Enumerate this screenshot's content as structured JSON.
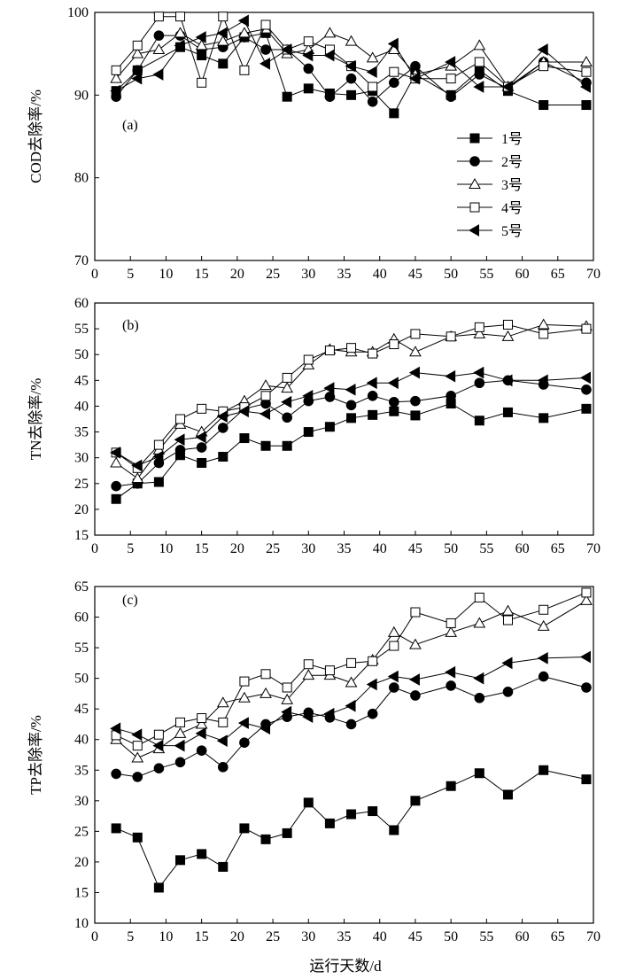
{
  "figure": {
    "xlabel": "运行天数/d"
  },
  "chart_data": [
    {
      "type": "line",
      "panel_label": "(a)",
      "ylabel": "COD去除率/%",
      "xlim": [
        0,
        70
      ],
      "ylim": [
        70,
        100
      ],
      "xticks": [
        0,
        5,
        10,
        15,
        20,
        25,
        30,
        35,
        40,
        45,
        50,
        55,
        60,
        65,
        70
      ],
      "yticks": [
        70,
        80,
        90,
        100
      ],
      "legend": {
        "position": "center-right"
      },
      "series": [
        {
          "name": "1号",
          "marker": "square-filled",
          "x": [
            3,
            6,
            12,
            15,
            18,
            21,
            24,
            27,
            30,
            33,
            36,
            39,
            42,
            45,
            50,
            54,
            58,
            63,
            69
          ],
          "y": [
            90.5,
            93,
            95.8,
            94.8,
            93.8,
            97.0,
            97.5,
            89.8,
            90.8,
            90.2,
            90.0,
            90.5,
            87.8,
            92.5,
            90.0,
            93.0,
            90.5,
            88.8,
            88.8
          ]
        },
        {
          "name": "2号",
          "marker": "circle-filled",
          "x": [
            3,
            6,
            9,
            12,
            15,
            18,
            21,
            24,
            27,
            30,
            33,
            36,
            39,
            42,
            45,
            50,
            54,
            58,
            63,
            69
          ],
          "y": [
            89.8,
            93.0,
            97.2,
            97.2,
            95.5,
            95.8,
            97.0,
            95.5,
            95.5,
            93.2,
            89.8,
            92.0,
            89.2,
            91.5,
            93.5,
            89.8,
            92.5,
            90.8,
            94.0,
            91.5
          ]
        },
        {
          "name": "3号",
          "marker": "triangle-open",
          "x": [
            3,
            6,
            9,
            12,
            15,
            18,
            21,
            24,
            27,
            30,
            33,
            36,
            39,
            42,
            45,
            50,
            54,
            58,
            63,
            69
          ],
          "y": [
            92.0,
            95.0,
            95.5,
            97.5,
            96.0,
            96.5,
            97.5,
            98.0,
            95.0,
            95.5,
            97.5,
            96.5,
            94.5,
            95.5,
            92.5,
            93.5,
            96.0,
            91.0,
            94.0,
            94.0
          ]
        },
        {
          "name": "4号",
          "marker": "square-open",
          "x": [
            3,
            6,
            9,
            12,
            15,
            18,
            21,
            24,
            27,
            30,
            33,
            36,
            39,
            42,
            45,
            50,
            54,
            58,
            63,
            69
          ],
          "y": [
            93.0,
            96.0,
            99.5,
            99.5,
            91.5,
            99.5,
            93.0,
            98.5,
            95.5,
            96.5,
            95.5,
            93.5,
            91.0,
            92.8,
            92.0,
            92.0,
            94.0,
            91.0,
            93.5,
            92.8
          ]
        },
        {
          "name": "5号",
          "marker": "triangle-left-filled",
          "x": [
            3,
            6,
            9,
            12,
            15,
            18,
            21,
            24,
            27,
            30,
            33,
            36,
            39,
            42,
            45,
            50,
            54,
            58,
            63,
            69
          ],
          "y": [
            90.5,
            92.0,
            92.5,
            96.0,
            97.0,
            97.5,
            99.0,
            93.8,
            95.5,
            94.8,
            94.8,
            93.5,
            92.8,
            96.2,
            92.0,
            94.0,
            91.0,
            91.0,
            95.5,
            91.0
          ]
        }
      ]
    },
    {
      "type": "line",
      "panel_label": "(b)",
      "ylabel": "TN去除率/%",
      "xlim": [
        0,
        70
      ],
      "ylim": [
        15,
        60
      ],
      "xticks": [
        0,
        5,
        10,
        15,
        20,
        25,
        30,
        35,
        40,
        45,
        50,
        55,
        60,
        65,
        70
      ],
      "yticks": [
        15,
        20,
        25,
        30,
        35,
        40,
        45,
        50,
        55,
        60
      ],
      "series": [
        {
          "name": "1号",
          "marker": "square-filled",
          "x": [
            3,
            6,
            9,
            12,
            15,
            18,
            21,
            24,
            27,
            30,
            33,
            36,
            39,
            42,
            45,
            50,
            54,
            58,
            63,
            69
          ],
          "y": [
            22.0,
            25.0,
            25.3,
            30.5,
            29.0,
            30.2,
            33.8,
            32.3,
            32.3,
            35.0,
            36.0,
            37.7,
            38.3,
            39.0,
            38.2,
            40.5,
            37.2,
            38.8,
            37.7,
            39.5
          ]
        },
        {
          "name": "2号",
          "marker": "circle-filled",
          "x": [
            3,
            6,
            9,
            12,
            15,
            18,
            21,
            24,
            27,
            30,
            33,
            36,
            39,
            42,
            45,
            50,
            54,
            58,
            63,
            69
          ],
          "y": [
            24.5,
            25.0,
            29.0,
            31.5,
            32.0,
            35.8,
            39.5,
            40.5,
            37.8,
            41.0,
            41.8,
            40.2,
            42.0,
            40.8,
            41.0,
            42.0,
            44.5,
            45.0,
            44.2,
            43.2
          ]
        },
        {
          "name": "3号",
          "marker": "triangle-open",
          "x": [
            3,
            6,
            9,
            12,
            15,
            18,
            21,
            24,
            27,
            30,
            33,
            36,
            39,
            42,
            45,
            50,
            54,
            58,
            63,
            69
          ],
          "y": [
            29.0,
            26.0,
            31.5,
            36.5,
            35.0,
            38.8,
            41.0,
            44.0,
            43.5,
            48.0,
            51.0,
            50.5,
            50.5,
            53.0,
            50.5,
            53.5,
            54.0,
            53.5,
            55.8,
            55.5
          ]
        },
        {
          "name": "4号",
          "marker": "square-open",
          "x": [
            3,
            6,
            9,
            12,
            15,
            18,
            21,
            24,
            27,
            30,
            33,
            36,
            39,
            42,
            45,
            50,
            54,
            58,
            63,
            69
          ],
          "y": [
            31.0,
            28.0,
            32.5,
            37.5,
            39.5,
            39.0,
            39.8,
            42.0,
            45.5,
            49.0,
            50.8,
            51.3,
            50.2,
            52.0,
            54.0,
            53.5,
            55.3,
            55.8,
            54.0,
            55.0
          ]
        },
        {
          "name": "5号",
          "marker": "triangle-left-filled",
          "x": [
            3,
            6,
            9,
            12,
            15,
            18,
            21,
            24,
            27,
            30,
            33,
            36,
            39,
            42,
            45,
            50,
            54,
            58,
            63,
            69
          ],
          "y": [
            31.0,
            28.5,
            30.2,
            33.5,
            34.0,
            38.0,
            39.0,
            38.5,
            40.8,
            42.0,
            43.5,
            43.2,
            44.5,
            44.5,
            46.5,
            45.8,
            46.5,
            45.0,
            45.0,
            45.5
          ]
        }
      ]
    },
    {
      "type": "line",
      "panel_label": "(c)",
      "ylabel": "TP去除率/%",
      "xlim": [
        0,
        70
      ],
      "ylim": [
        10,
        65
      ],
      "xticks": [
        0,
        5,
        10,
        15,
        20,
        25,
        30,
        35,
        40,
        45,
        50,
        55,
        60,
        65,
        70
      ],
      "yticks": [
        10,
        15,
        20,
        25,
        30,
        35,
        40,
        45,
        50,
        55,
        60,
        65
      ],
      "series": [
        {
          "name": "1号",
          "marker": "square-filled",
          "x": [
            3,
            6,
            9,
            12,
            15,
            18,
            21,
            24,
            27,
            30,
            33,
            36,
            39,
            42,
            45,
            50,
            54,
            58,
            63,
            69
          ],
          "y": [
            25.5,
            24.0,
            15.8,
            20.3,
            21.3,
            19.2,
            25.5,
            23.7,
            24.7,
            29.7,
            26.3,
            27.8,
            28.3,
            25.2,
            30.0,
            32.4,
            34.5,
            31.0,
            35.0,
            33.5
          ]
        },
        {
          "name": "2号",
          "marker": "circle-filled",
          "x": [
            3,
            6,
            9,
            12,
            15,
            18,
            21,
            24,
            27,
            30,
            33,
            36,
            39,
            42,
            45,
            50,
            54,
            58,
            63,
            69
          ],
          "y": [
            34.4,
            33.9,
            35.3,
            36.3,
            38.2,
            35.5,
            39.5,
            42.5,
            43.7,
            44.4,
            43.6,
            42.5,
            44.2,
            48.5,
            47.2,
            48.8,
            46.8,
            47.8,
            50.3,
            48.5
          ]
        },
        {
          "name": "3号",
          "marker": "triangle-open",
          "x": [
            3,
            6,
            9,
            12,
            15,
            18,
            21,
            24,
            27,
            30,
            33,
            36,
            39,
            42,
            45,
            50,
            54,
            58,
            63,
            69
          ],
          "y": [
            40.0,
            37.0,
            38.5,
            41.0,
            42.5,
            46.0,
            46.8,
            47.5,
            46.5,
            50.5,
            50.5,
            49.3,
            53.0,
            57.5,
            55.5,
            57.5,
            59.0,
            61.0,
            58.5,
            62.7
          ]
        },
        {
          "name": "4号",
          "marker": "square-open",
          "x": [
            3,
            6,
            9,
            12,
            15,
            18,
            21,
            24,
            27,
            30,
            33,
            36,
            39,
            42,
            45,
            50,
            54,
            58,
            63,
            69
          ],
          "y": [
            40.7,
            39.0,
            40.8,
            42.8,
            43.5,
            42.8,
            49.5,
            50.7,
            48.5,
            52.3,
            51.3,
            52.5,
            52.8,
            55.3,
            60.8,
            59.0,
            63.2,
            59.5,
            61.2,
            64.0
          ]
        },
        {
          "name": "5号",
          "marker": "triangle-left-filled",
          "x": [
            3,
            6,
            9,
            12,
            15,
            18,
            21,
            24,
            27,
            30,
            33,
            36,
            39,
            42,
            45,
            50,
            54,
            58,
            63,
            69
          ],
          "y": [
            41.8,
            40.8,
            39.0,
            39.0,
            41.0,
            39.8,
            42.7,
            41.8,
            44.5,
            43.7,
            44.2,
            45.5,
            49.0,
            50.3,
            49.8,
            51.0,
            50.0,
            52.5,
            53.3,
            53.5
          ]
        }
      ]
    }
  ]
}
